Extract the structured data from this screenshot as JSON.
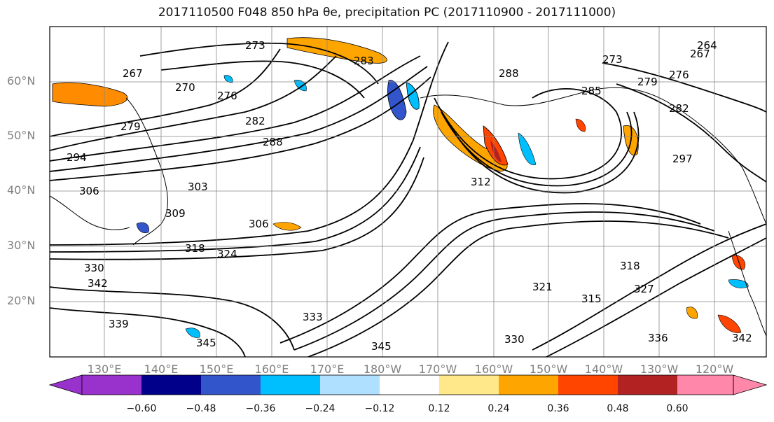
{
  "title": "2017110500 F048 850 hPa θe, precipitation PC (2017110900 - 2017111000)",
  "map": {
    "lat_labels": [
      "60°N",
      "50°N",
      "40°N",
      "30°N",
      "20°N"
    ],
    "lon_labels": [
      "130°E",
      "140°E",
      "150°E",
      "160°E",
      "170°E",
      "180°W",
      "170°W",
      "160°W",
      "150°W",
      "140°W",
      "130°W",
      "120°W"
    ],
    "contour_labels": [
      "267",
      "270",
      "273",
      "276",
      "279",
      "282",
      "285",
      "288",
      "294",
      "297",
      "303",
      "306",
      "309",
      "312",
      "315",
      "318",
      "321",
      "324",
      "327",
      "330",
      "333",
      "336",
      "339",
      "342",
      "345",
      "264",
      "283"
    ],
    "coastline_color": "#000000",
    "grid_color": "#888888"
  },
  "colorbar": {
    "ticks": [
      "−0.60",
      "−0.48",
      "−0.36",
      "−0.24",
      "−0.12",
      "0.12",
      "0.24",
      "0.36",
      "0.48",
      "0.60"
    ],
    "colors": [
      "#9932CC",
      "#00008B",
      "#3355CC",
      "#00BFFF",
      "#B0E0FF",
      "#FFFFFF",
      "#FFE88A",
      "#FFA500",
      "#FF4500",
      "#B22222",
      "#FF88AA"
    ]
  }
}
